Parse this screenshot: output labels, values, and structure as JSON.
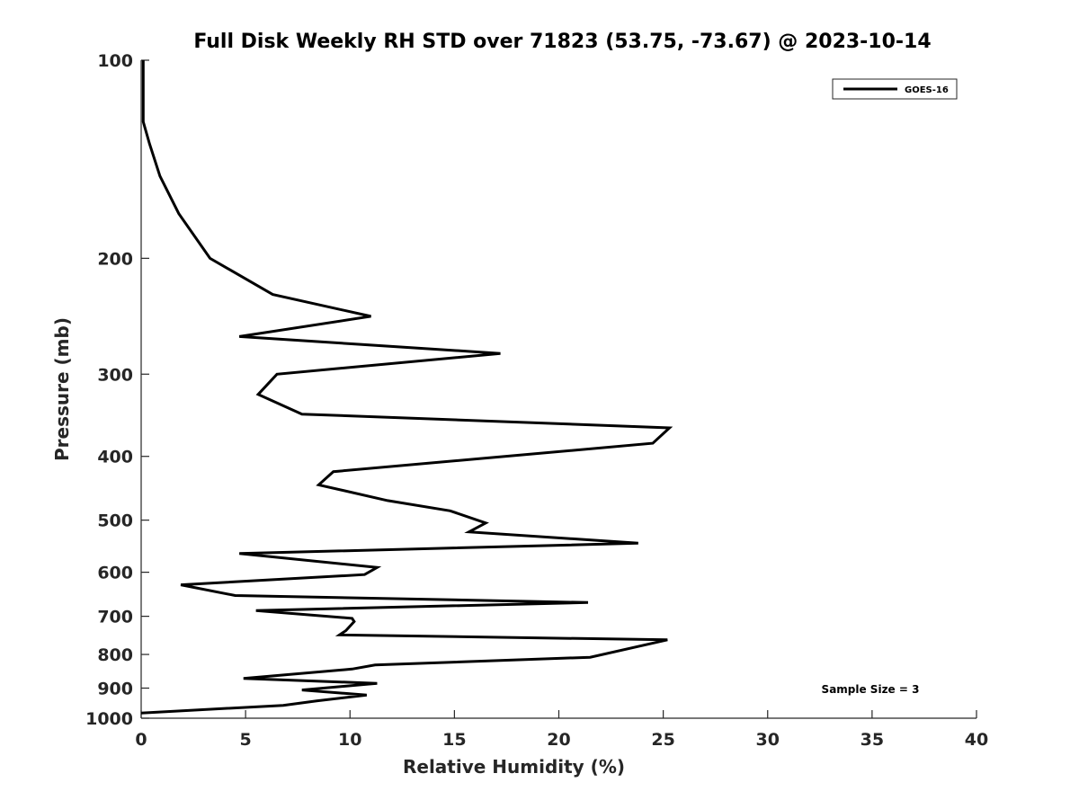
{
  "chart_data": {
    "type": "line",
    "title": "Full Disk Weekly RH STD over 71823 (53.75, -73.67) @ 2023-10-14",
    "xlabel": "Relative Humidity (%)",
    "ylabel": "Pressure (mb)",
    "xlim": [
      0,
      40
    ],
    "ylim": [
      100,
      1000
    ],
    "yscale": "log",
    "y_reversed": true,
    "grid": false,
    "legend_position": "top-right",
    "xticks": [
      0,
      5,
      10,
      15,
      20,
      25,
      30,
      35,
      40
    ],
    "xtick_labels": [
      "0",
      "5",
      "10",
      "15",
      "20",
      "25",
      "30",
      "35",
      "40"
    ],
    "yticks": [
      100,
      200,
      300,
      400,
      500,
      600,
      700,
      800,
      900,
      1000
    ],
    "ytick_labels": [
      "100",
      "200",
      "300",
      "400",
      "500",
      "600",
      "700",
      "800",
      "900",
      "1000"
    ],
    "series": [
      {
        "name": "GOES-16",
        "color": "#000000",
        "x": [
          0.1,
          0.1,
          0.1,
          0.4,
          0.9,
          1.8,
          3.3,
          6.3,
          11.0,
          4.7,
          17.2,
          6.5,
          5.6,
          7.7,
          25.3,
          24.5,
          9.2,
          8.5,
          11.8,
          14.8,
          16.5,
          15.7,
          23.8,
          4.7,
          11.3,
          10.7,
          1.9,
          4.5,
          21.4,
          5.5,
          10.1,
          10.2,
          9.8,
          9.5,
          25.2,
          21.5,
          11.2,
          10.1,
          4.9,
          11.3,
          7.7,
          10.8,
          8.4,
          6.8,
          0.0
        ],
        "y": [
          100,
          115,
          124,
          134,
          150,
          171,
          200,
          227,
          245,
          263,
          279,
          300,
          322,
          345,
          362,
          382,
          422,
          442,
          467,
          484,
          505,
          521,
          542,
          562,
          590,
          605,
          627,
          651,
          667,
          686,
          705,
          713,
          736,
          747,
          760,
          808,
          830,
          842,
          870,
          885,
          906,
          922,
          941,
          956,
          982
        ]
      }
    ],
    "legend": [
      "GOES-16"
    ],
    "annotations": [
      "Sample Size = 3"
    ]
  }
}
